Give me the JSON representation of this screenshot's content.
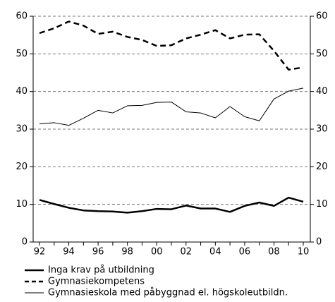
{
  "chart_data": {
    "type": "line",
    "categories": [
      "92",
      null,
      "94",
      null,
      "96",
      null,
      "98",
      null,
      "00",
      null,
      "02",
      null,
      "04",
      null,
      "06",
      null,
      "08",
      null,
      "10"
    ],
    "series": [
      {
        "name": "Inga krav på utbildning",
        "color": "#000000",
        "line_style": "solid",
        "line_width": 2.5,
        "values": [
          11.2,
          10.1,
          9.1,
          8.4,
          8.2,
          8.1,
          7.8,
          8.2,
          8.8,
          8.7,
          9.7,
          8.9,
          8.9,
          8.0,
          9.6,
          10.5,
          9.6,
          11.8,
          10.7
        ]
      },
      {
        "name": "Gymnasiekompetens",
        "color": "#000000",
        "line_style": "dashed",
        "line_width": 2.5,
        "values": [
          55.5,
          56.8,
          58.6,
          57.5,
          55.3,
          55.9,
          54.5,
          53.7,
          52.1,
          52.3,
          54.1,
          55.1,
          56.3,
          54.1,
          55.1,
          55.2,
          50.8,
          45.8,
          46.4
        ]
      },
      {
        "name": "Gymnasieskola med påbyggnad el. högskoleutbildn.",
        "color": "#000000",
        "line_style": "solid",
        "line_width": 1,
        "values": [
          31.4,
          31.7,
          31.0,
          32.9,
          35.0,
          34.3,
          36.2,
          36.3,
          37.1,
          37.2,
          34.6,
          34.3,
          33.0,
          36.0,
          33.3,
          32.2,
          38.0,
          40.1,
          40.9
        ]
      }
    ],
    "ylim": [
      0,
      60
    ],
    "yticks": [
      0,
      10,
      20,
      30,
      40,
      50,
      60
    ],
    "grid": true
  }
}
